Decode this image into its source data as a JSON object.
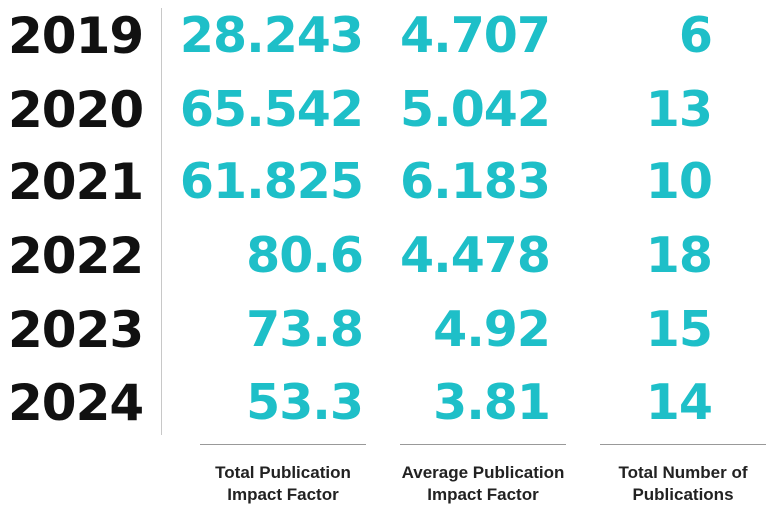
{
  "rows": [
    {
      "year": "2019",
      "total_if": "28.243",
      "avg_if": "4.707",
      "count": "6"
    },
    {
      "year": "2020",
      "total_if": "65.542",
      "avg_if": "5.042",
      "count": "13"
    },
    {
      "year": "2021",
      "total_if": "61.825",
      "avg_if": "6.183",
      "count": "10"
    },
    {
      "year": "2022",
      "total_if": "80.6",
      "avg_if": "4.478",
      "count": "18"
    },
    {
      "year": "2023",
      "total_if": "73.8",
      "avg_if": "4.92",
      "count": "15"
    },
    {
      "year": "2024",
      "total_if": "53.3",
      "avg_if": "3.81",
      "count": "14"
    }
  ],
  "columns": [
    {
      "label": "Total Publication\nImpact Factor"
    },
    {
      "label": "Average Publication\nImpact Factor"
    },
    {
      "label": "Total Number of\nPublications"
    }
  ],
  "colors": {
    "value": "#1ebfc8",
    "year": "#111111"
  }
}
